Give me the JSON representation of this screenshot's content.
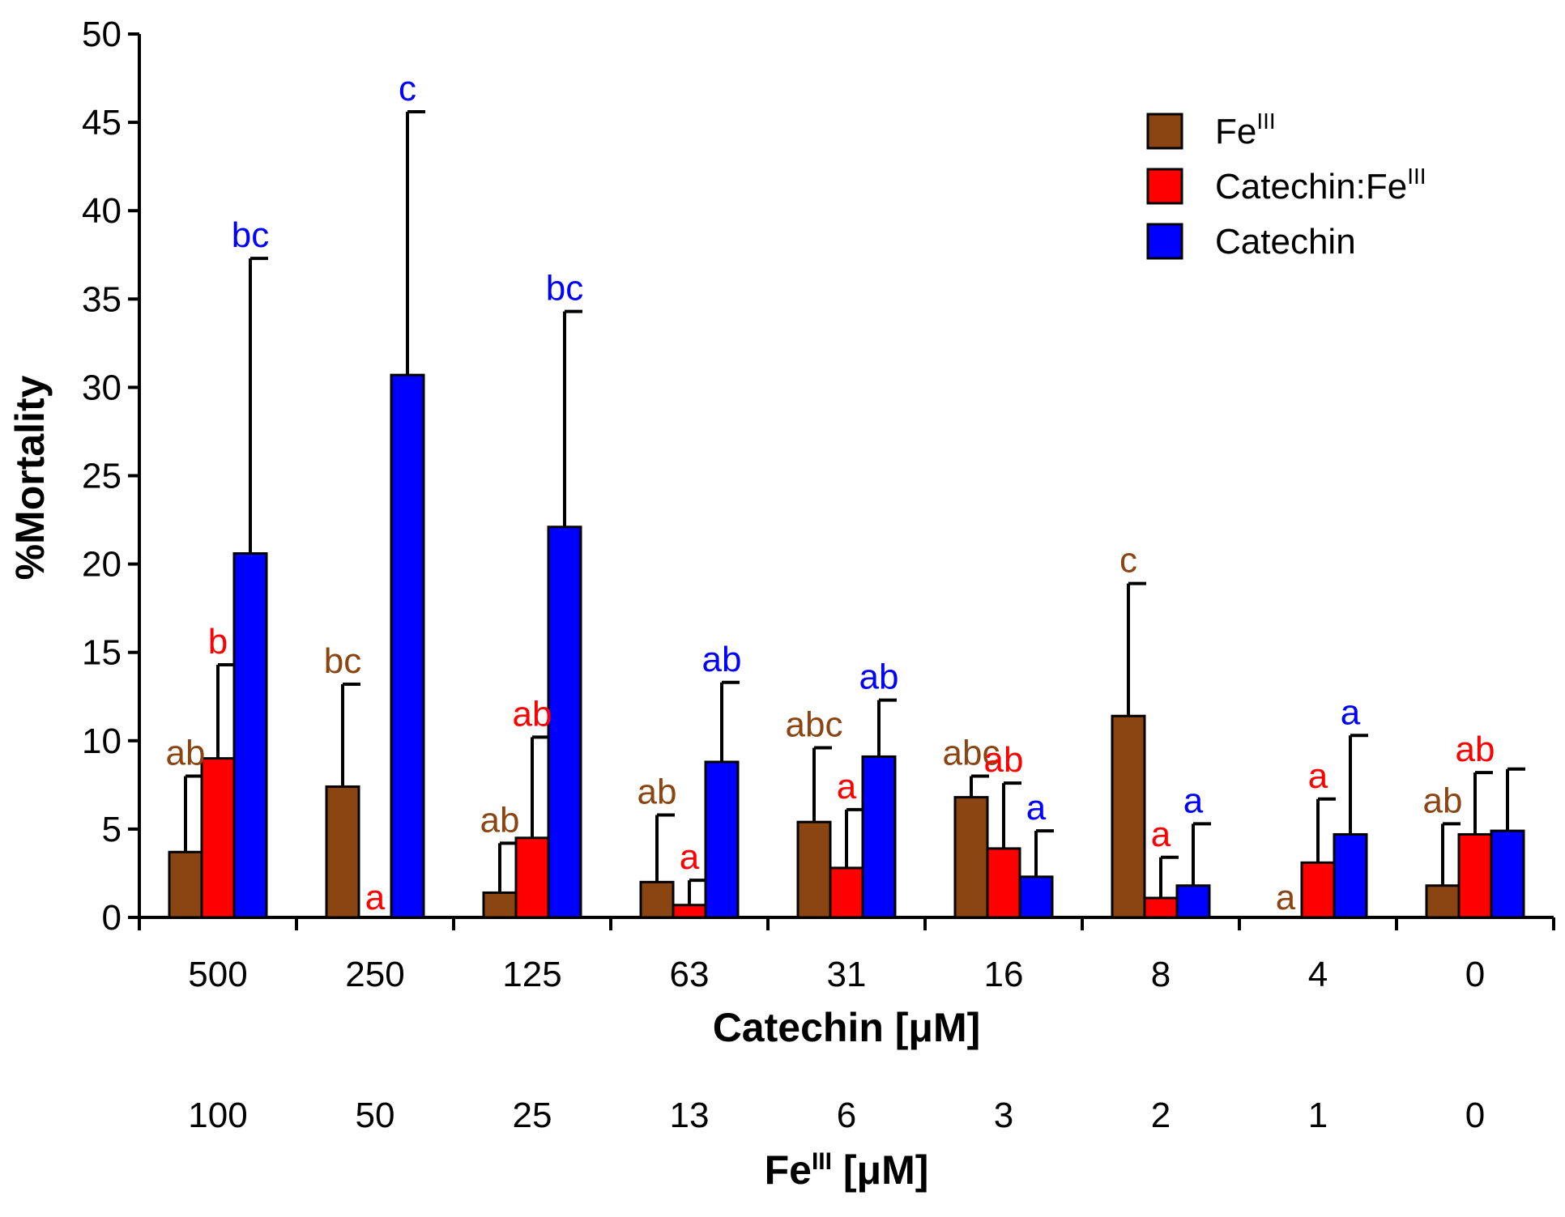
{
  "chart_data": {
    "type": "bar",
    "title": "",
    "ylabel": "%Mortality",
    "ylim": [
      0,
      50
    ],
    "yticks": [
      0,
      5,
      10,
      15,
      20,
      25,
      30,
      35,
      40,
      45,
      50
    ],
    "xlabel": "Catechin [μM]",
    "xlabel2_main": "Fe",
    "xlabel2_sup": "III",
    "xlabel2_rest": " [μM]",
    "categories": [
      "500",
      "250",
      "125",
      "63",
      "31",
      "16",
      "8",
      "4",
      "0"
    ],
    "categories2": [
      "100",
      "50",
      "25",
      "13",
      "6",
      "3",
      "2",
      "1",
      "0"
    ],
    "grid": false,
    "legend_position": "top-right",
    "series": [
      {
        "name": "Fe",
        "name_sup": "III",
        "color": "#8B4513",
        "label_color": "#8B4513",
        "values": [
          3.7,
          7.4,
          1.4,
          2.0,
          5.4,
          6.8,
          11.4,
          0,
          1.8
        ],
        "errors": [
          4.3,
          5.8,
          2.8,
          3.8,
          4.2,
          1.2,
          7.5,
          0,
          3.5
        ],
        "labels": [
          "ab",
          "bc",
          "ab",
          "ab",
          "abc",
          "abc",
          "c",
          "a",
          "ab"
        ]
      },
      {
        "name": "Catechin:Fe",
        "name_sup": "III",
        "color": "#FF0000",
        "label_color": "#FF0000",
        "values": [
          9.0,
          0,
          4.5,
          0.7,
          2.8,
          3.9,
          1.1,
          3.1,
          4.7
        ],
        "errors": [
          5.3,
          0,
          5.7,
          1.4,
          3.3,
          3.7,
          2.3,
          3.6,
          3.5
        ],
        "labels": [
          "b",
          "a",
          "ab",
          "a",
          "a",
          "ab",
          "a",
          "a",
          "ab"
        ]
      },
      {
        "name": "Catechin",
        "name_sup": "",
        "color": "#0000FF",
        "label_color": "#0000FF",
        "values": [
          20.6,
          30.7,
          22.1,
          8.8,
          9.1,
          2.3,
          1.8,
          4.7,
          4.9
        ],
        "errors": [
          16.7,
          14.9,
          12.2,
          4.5,
          3.2,
          2.6,
          3.5,
          5.6,
          3.5
        ],
        "labels": [
          "bc",
          "c",
          "bc",
          "ab",
          "ab",
          "a",
          "a",
          "a",
          ""
        ]
      }
    ]
  }
}
